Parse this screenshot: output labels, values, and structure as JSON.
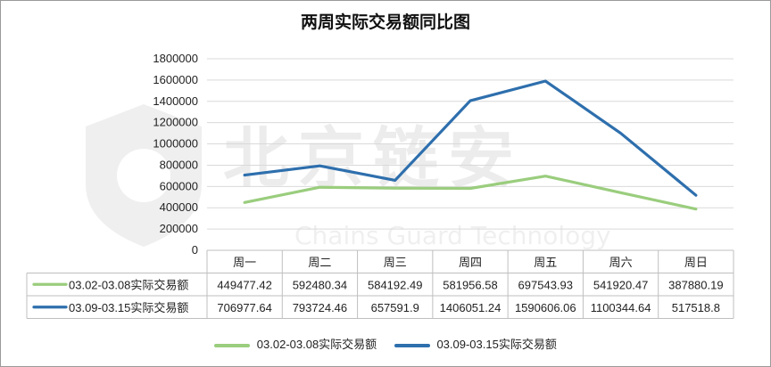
{
  "chart_data": {
    "type": "line",
    "title": "两周实际交易额同比图",
    "categories": [
      "周一",
      "周二",
      "周三",
      "周四",
      "周五",
      "周六",
      "周日"
    ],
    "ylim": [
      0,
      1800000
    ],
    "yticks": [
      0,
      200000,
      400000,
      600000,
      800000,
      1000000,
      1200000,
      1400000,
      1600000,
      1800000
    ],
    "series": [
      {
        "name": "03.02-03.08实际交易额",
        "color": "#9acd7d",
        "values": [
          449477.42,
          592480.34,
          584192.49,
          581956.58,
          697543.93,
          541920.47,
          387880.19
        ],
        "labels": [
          "449477.42",
          "592480.34",
          "584192.49",
          "581956.58",
          "697543.93",
          "541920.47",
          "387880.19"
        ]
      },
      {
        "name": "03.09-03.15实际交易额",
        "color": "#2e6fad",
        "values": [
          706977.64,
          793724.46,
          657591.9,
          1406051.24,
          1590606.06,
          1100344.64,
          517518.8
        ],
        "labels": [
          "706977.64",
          "793724.46",
          "657591.9",
          "1406051.24",
          "1590606.06",
          "1100344.64",
          "517518.8"
        ]
      }
    ],
    "grid": true,
    "legend_position": "bottom",
    "data_table": true
  },
  "watermark": {
    "text": "北京链安",
    "subtext": "Chains Guard Technology"
  }
}
